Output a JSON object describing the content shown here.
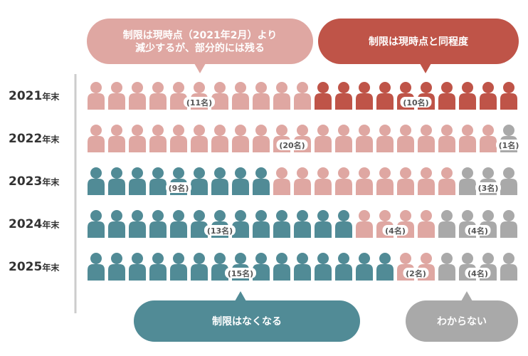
{
  "chart_data": {
    "type": "pictogram",
    "rows": [
      {
        "year": "2021",
        "suffix": "年末",
        "segments": [
          {
            "category": "reduce",
            "count": 11,
            "label": "(11名)"
          },
          {
            "category": "same",
            "count": 10,
            "label": "(10名)"
          }
        ]
      },
      {
        "year": "2022",
        "suffix": "年末",
        "segments": [
          {
            "category": "reduce",
            "count": 20,
            "label": "(20名)"
          },
          {
            "category": "unknown",
            "count": 1,
            "label": "(1名)"
          }
        ]
      },
      {
        "year": "2023",
        "suffix": "年末",
        "segments": [
          {
            "category": "eliminate",
            "count": 9,
            "label": "(9名)"
          },
          {
            "category": "reduce",
            "count": 9,
            "label": ""
          },
          {
            "category": "unknown",
            "count": 3,
            "label": "(3名)"
          }
        ]
      },
      {
        "year": "2024",
        "suffix": "年末",
        "segments": [
          {
            "category": "eliminate",
            "count": 13,
            "label": "(13名)"
          },
          {
            "category": "reduce",
            "count": 4,
            "label": "(4名)"
          },
          {
            "category": "unknown",
            "count": 4,
            "label": "(4名)"
          }
        ]
      },
      {
        "year": "2025",
        "suffix": "年末",
        "segments": [
          {
            "category": "eliminate",
            "count": 15,
            "label": "(15名)"
          },
          {
            "category": "reduce",
            "count": 2,
            "label": "(2名)"
          },
          {
            "category": "unknown",
            "count": 4,
            "label": "(4名)"
          }
        ]
      }
    ],
    "categories": {
      "reduce": {
        "label_lines": [
          "制限は現時点（2021年2月）より",
          "減少するが、部分的には残る"
        ],
        "color": "#dfa7a2"
      },
      "same": {
        "label_lines": [
          "制限は現時点と同程度"
        ],
        "color": "#bf5448"
      },
      "eliminate": {
        "label_lines": [
          "制限はなくなる"
        ],
        "color": "#518b96"
      },
      "unknown": {
        "label_lines": [
          "わからない"
        ],
        "color": "#a9a9a9"
      }
    },
    "axis_line_color": "#cccccc"
  }
}
